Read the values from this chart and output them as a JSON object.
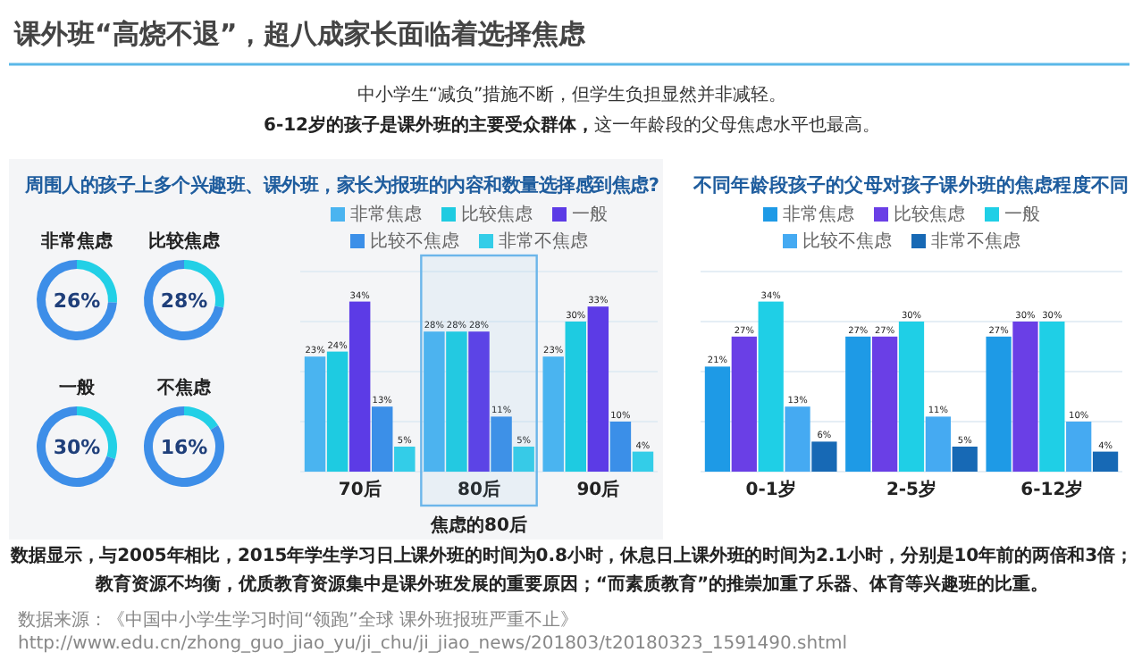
{
  "chart_data": [
    {
      "type": "other",
      "title": "课外班“高烧不退”，超八成家长面临着选择焦虑",
      "subtitle": "中小学生“减负”措施不断，但学生负担显然并非减轻。",
      "annotations": [
        "6-12岁的孩子是课外班的主要受众群体，",
        "这一年龄段的父母焦虑水平也最高。",
        "数据显示，与2005年相比，2015年学生学习日上课外班的时间为0.8小时，休息日上课外班的时间为2.1小时，分别是10年前的两倍和3倍；",
        "教育资源不均衡，优质教育资源集中是课外班发展的重要原因；“而素质教育”的推崇加重了乐器、体育等兴趣班的比重。",
        "数据来源：《中国中小学生学习时间“领跑”全球 课外班报班严重不止》 http://www.edu.cn/zhong_guo_jiao_yu/ji_chu/ji_jiao_news/201803/t20180323_1591490.shtml"
      ]
    },
    {
      "type": "donut",
      "title": "非常焦虑",
      "categories": [
        null,
        null
      ],
      "values": [
        26,
        74
      ],
      "colors": [
        "#22d0e6",
        "#3d8ee8"
      ],
      "subtitle": "26%"
    },
    {
      "type": "donut",
      "title": "比较焦虑",
      "categories": [
        null,
        null
      ],
      "values": [
        28,
        72
      ],
      "colors": [
        "#22d0e6",
        "#3d8ee8"
      ],
      "subtitle": "28%"
    },
    {
      "type": "donut",
      "title": "一般",
      "categories": [
        null,
        null
      ],
      "values": [
        30,
        70
      ],
      "colors": [
        "#22d0e6",
        "#3d8ee8"
      ],
      "subtitle": "30%"
    },
    {
      "type": "donut",
      "title": "不焦虑",
      "categories": [
        null,
        null
      ],
      "values": [
        16,
        84
      ],
      "colors": [
        "#22d0e6",
        "#3d8ee8"
      ],
      "subtitle": "16%"
    },
    {
      "type": "bar",
      "title": "周围人的孩子上多个兴趣班、课外班，家长为报班的内容和数量选择感到焦虑?",
      "categories": [
        "70后",
        "80后",
        "90后"
      ],
      "ylim": [
        0,
        40
      ],
      "yticks": [
        {
          "value": 0,
          "label": null
        },
        {
          "value": 10,
          "label": null
        },
        {
          "value": 20,
          "label": null
        },
        {
          "value": 30,
          "label": null
        },
        {
          "value": 40,
          "label": null
        }
      ],
      "grid": "y",
      "tick_labels": "x",
      "legend": "top",
      "bands": [
        {
          "axis": "x",
          "from": "80后",
          "to": "80后",
          "label": "焦虑的80后",
          "color": "#6cb6ea"
        }
      ],
      "series": [
        {
          "name": "非常焦虑",
          "color": "#4ab4f0",
          "values": [
            23,
            28,
            23
          ],
          "value_labels": [
            "23%",
            "28%",
            "23%"
          ]
        },
        {
          "name": "比较焦虑",
          "color": "#1ecbe1",
          "values": [
            24,
            28,
            30
          ],
          "value_labels": [
            "24%",
            "28%",
            "30%"
          ]
        },
        {
          "name": "一般",
          "color": "#5c3be6",
          "values": [
            34,
            28,
            33
          ],
          "value_labels": [
            "34%",
            "28%",
            "33%"
          ]
        },
        {
          "name": "比较不焦虑",
          "color": "#3b8fe8",
          "values": [
            13,
            11,
            10
          ],
          "value_labels": [
            "13%",
            "11%",
            "10%"
          ]
        },
        {
          "name": "非常不焦虑",
          "color": "#33cde8",
          "values": [
            5,
            5,
            4
          ],
          "value_labels": [
            "5%",
            "5%",
            "4%"
          ]
        }
      ]
    },
    {
      "type": "bar",
      "title": "不同年龄段孩子的父母对孩子课外班的焦虑程度不同",
      "categories": [
        "0-1岁",
        "2-5岁",
        "6-12岁"
      ],
      "ylim": [
        0,
        40
      ],
      "yticks": [
        {
          "value": 0,
          "label": null
        },
        {
          "value": 10,
          "label": null
        },
        {
          "value": 20,
          "label": null
        },
        {
          "value": 30,
          "label": null
        },
        {
          "value": 40,
          "label": null
        }
      ],
      "grid": "y",
      "tick_labels": "x",
      "legend": "top",
      "series": [
        {
          "name": "非常焦虑",
          "color": "#1e9ae6",
          "values": [
            21,
            27,
            27
          ],
          "value_labels": [
            "21%",
            "27%",
            "27%"
          ]
        },
        {
          "name": "比较焦虑",
          "color": "#6a3fe6",
          "values": [
            27,
            27,
            30
          ],
          "value_labels": [
            "27%",
            "27%",
            "30%"
          ]
        },
        {
          "name": "一般",
          "color": "#1fcfe6",
          "values": [
            34,
            30,
            30
          ],
          "value_labels": [
            "34%",
            "30%",
            "30%"
          ]
        },
        {
          "name": "比较不焦虑",
          "color": "#45aaf2",
          "values": [
            13,
            11,
            10
          ],
          "value_labels": [
            "13%",
            "11%",
            "10%"
          ]
        },
        {
          "name": "非常不焦虑",
          "color": "#1769b5",
          "values": [
            6,
            5,
            4
          ],
          "value_labels": [
            "6%",
            "5%",
            "4%"
          ]
        }
      ]
    }
  ]
}
